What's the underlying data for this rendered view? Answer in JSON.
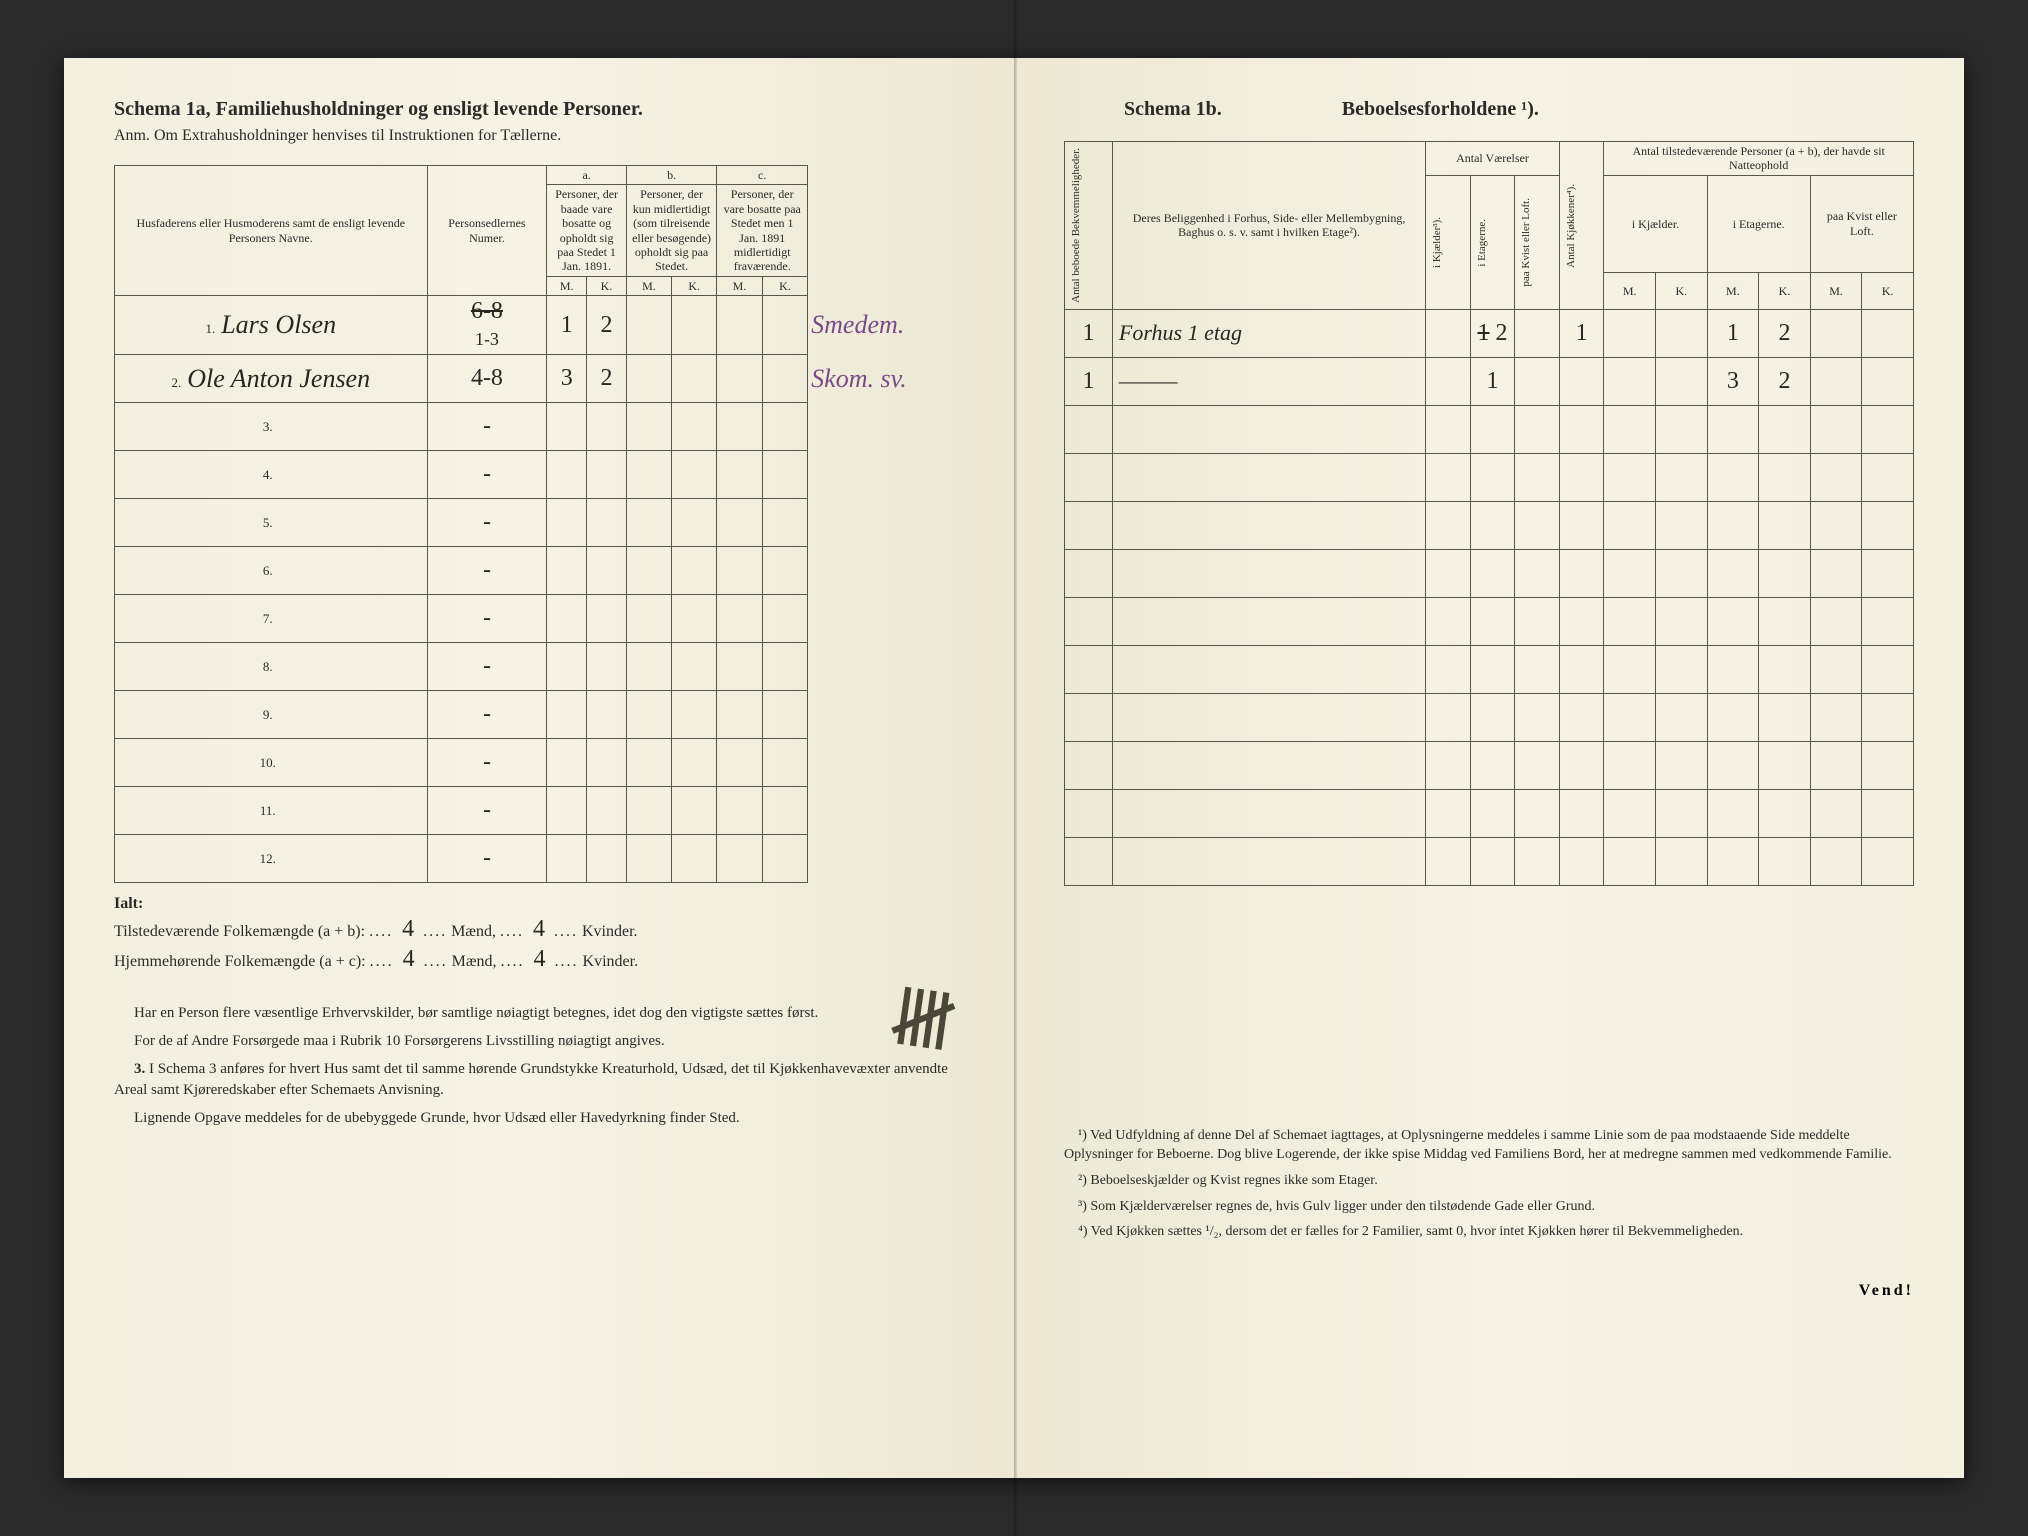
{
  "left": {
    "schema_title": "Schema 1a,  Familiehusholdninger og ensligt levende Personer.",
    "anm": "Anm. Om Extrahusholdninger henvises til Instruktionen for Tællerne.",
    "headers": {
      "col1": "Husfaderens eller Husmoderens samt de ensligt levende Personers Navne.",
      "col2": "Personsedlernes Numer.",
      "a_label": "a.",
      "a_text": "Personer, der baade vare bosatte og opholdt sig paa Stedet 1 Jan. 1891.",
      "b_label": "b.",
      "b_text": "Personer, der kun midlertidigt (som tilreisende eller besøgende) opholdt sig paa Stedet.",
      "c_label": "c.",
      "c_text": "Personer, der vare bosatte paa Stedet men 1 Jan. 1891 midlertidigt fraværende.",
      "m": "M.",
      "k": "K."
    },
    "rows": [
      {
        "n": "1.",
        "name": "Lars Olsen",
        "num": "1-3",
        "num_strike": "6-8",
        "aM": "1",
        "aK": "2",
        "bM": "",
        "bK": "",
        "cM": "",
        "cK": "",
        "note": "Smedem."
      },
      {
        "n": "2.",
        "name": "Ole Anton Jensen",
        "num": "4-8",
        "aM": "3",
        "aK": "2",
        "bM": "",
        "bK": "",
        "cM": "",
        "cK": "",
        "note": "Skom. sv."
      },
      {
        "n": "3."
      },
      {
        "n": "4."
      },
      {
        "n": "5."
      },
      {
        "n": "6."
      },
      {
        "n": "7."
      },
      {
        "n": "8."
      },
      {
        "n": "9."
      },
      {
        "n": "10."
      },
      {
        "n": "11."
      },
      {
        "n": "12."
      }
    ],
    "totals": {
      "ialt": "Ialt:",
      "line1_label": "Tilstedeværende Folkemængde (a + b):",
      "line2_label": "Hjemmehørende Folkemængde (a + c):",
      "maend": "Mænd,",
      "kvinder": "Kvinder.",
      "m1": "4",
      "k1": "4",
      "m2": "4",
      "k2": "4"
    },
    "notes": {
      "p1": "Har en Person flere væsentlige Erhvervskilder, bør samtlige nøiagtigt betegnes, idet dog den vigtigste sættes først.",
      "p2": "For de af Andre Forsørgede maa i Rubrik 10 Forsørgerens Livsstilling nøiagtigt angives.",
      "p3_label": "3.",
      "p3": "I Schema 3 anføres for hvert Hus samt det til samme hørende Grundstykke Kreaturhold, Udsæd, det til Kjøkkenhavevæxter anvendte Areal samt Kjøreredskaber efter Schemaets Anvisning.",
      "p4": "Lignende Opgave meddeles for de ubebyggede Grunde, hvor Udsæd eller Havedyrkning finder Sted."
    }
  },
  "right": {
    "schema_label": "Schema 1b.",
    "title": "Beboelsesforholdene ¹).",
    "headers": {
      "v1": "Antal beboede Bekvemmeligheder.",
      "col2": "Deres Beliggenhed i Forhus, Side- eller Mellembygning, Baghus o. s. v. samt i hvilken Etage²).",
      "antal_vaer": "Antal Værelser",
      "v_kj": "i Kjælder³).",
      "v_et": "i Etagerne.",
      "v_kv": "paa Kvist eller Loft.",
      "v_kjok": "Antal Kjøkkener⁴).",
      "group2": "Antal tilstedeværende Personer (a + b), der havde sit Natteophold",
      "kjael": "i Kjælder.",
      "etag": "i Etagerne.",
      "kvist": "paa Kvist eller Loft.",
      "m": "M.",
      "k": "K."
    },
    "rows": [
      {
        "bek": "1",
        "belig": "Forhus 1 etag",
        "kj": "",
        "et": "2",
        "kvl": "",
        "kjok": "1",
        "km": "",
        "kk": "",
        "em": "1",
        "ek": "2",
        "kvm": "",
        "kvk": "",
        "et_strike": "1"
      },
      {
        "bek": "1",
        "belig": "———",
        "kj": "",
        "et": "1",
        "kvl": "",
        "kjok": "",
        "km": "",
        "kk": "",
        "em": "3",
        "ek": "2",
        "kvm": "",
        "kvk": ""
      }
    ],
    "footnotes": {
      "f1": "¹) Ved Udfyldning af denne Del af Schemaet iagttages, at Oplysningerne meddeles i samme Linie som de paa modstaaende Side meddelte Oplysninger for Beboerne. Dog blive Logerende, der ikke spise Middag ved Familiens Bord, her at medregne sammen med vedkommende Familie.",
      "f2": "²) Beboelseskjælder og Kvist regnes ikke som Etager.",
      "f3": "³) Som Kjælderværelser regnes de, hvis Gulv ligger under den tilstødende Gade eller Grund.",
      "f4": "⁴) Ved Kjøkken sættes ¹/₂, dersom det er fælles for 2 Familier, samt 0, hvor intet Kjøkken hører til Bekvemmeligheden."
    },
    "vend": "Vend!"
  },
  "colors": {
    "paper": "#f4f0e0",
    "ink": "#2a2a28",
    "border": "#5a5648",
    "handwriting": "#2a2620",
    "purple": "#7a4a8a"
  }
}
